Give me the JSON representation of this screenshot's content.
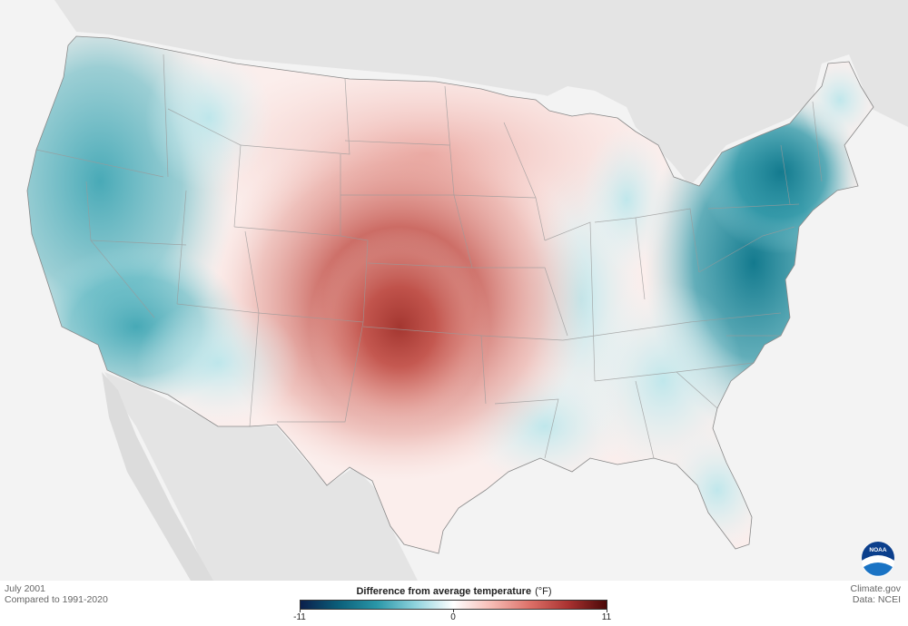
{
  "map": {
    "period": "July 2001",
    "baseline": "Compared to 1991-2020",
    "credit_site": "Climate.gov",
    "credit_data": "Data: NCEI"
  },
  "legend": {
    "title": "Difference from average temperature",
    "unit": "(°F)",
    "min_label": "-11",
    "mid_label": "0",
    "max_label": "11",
    "colors": [
      "#0b1f4b",
      "#0b5f7a",
      "#2a97a8",
      "#8fd3dd",
      "#ffffff",
      "#f6bbb4",
      "#dc7068",
      "#a93230",
      "#4a0808"
    ]
  },
  "logo": {
    "text": "NOAA",
    "icon": "noaa-logo-icon"
  }
}
